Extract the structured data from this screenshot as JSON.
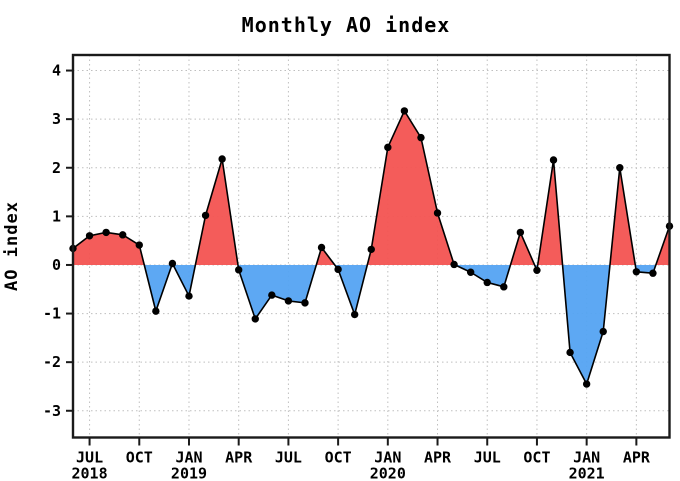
{
  "chart_data": {
    "type": "area",
    "title": "Monthly AO index",
    "ylabel": "AO index",
    "xlabel": "",
    "grid": "dotted",
    "legend_position": "none",
    "ylim": [
      -3.55,
      4.32
    ],
    "yticks": [
      4,
      3,
      2,
      1,
      0,
      -1,
      -2,
      -3
    ],
    "xticks": [
      {
        "month": 1,
        "label": "JUL",
        "year": "2018"
      },
      {
        "month": 4,
        "label": "OCT",
        "year": ""
      },
      {
        "month": 7,
        "label": "JAN",
        "year": "2019"
      },
      {
        "month": 10,
        "label": "APR",
        "year": ""
      },
      {
        "month": 13,
        "label": "JUL",
        "year": ""
      },
      {
        "month": 16,
        "label": "OCT",
        "year": ""
      },
      {
        "month": 19,
        "label": "JAN",
        "year": "2020"
      },
      {
        "month": 22,
        "label": "APR",
        "year": ""
      },
      {
        "month": 25,
        "label": "JUL",
        "year": ""
      },
      {
        "month": 28,
        "label": "OCT",
        "year": ""
      },
      {
        "month": 31,
        "label": "JAN",
        "year": "2021"
      },
      {
        "month": 34,
        "label": "APR",
        "year": ""
      }
    ],
    "x": [
      "Jun 2018",
      "Jul 2018",
      "Aug 2018",
      "Sep 2018",
      "Oct 2018",
      "Nov 2018",
      "Dec 2018",
      "Jan 2019",
      "Feb 2019",
      "Mar 2019",
      "Apr 2019",
      "May 2019",
      "Jun 2019",
      "Jul 2019",
      "Aug 2019",
      "Sep 2019",
      "Oct 2019",
      "Nov 2019",
      "Dec 2019",
      "Jan 2020",
      "Feb 2020",
      "Mar 2020",
      "Apr 2020",
      "May 2020",
      "Jun 2020",
      "Jul 2020",
      "Aug 2020",
      "Sep 2020",
      "Oct 2020",
      "Nov 2020",
      "Dec 2020",
      "Jan 2021",
      "Feb 2021",
      "Mar 2021",
      "Apr 2021",
      "May 2021",
      "Jun 2021"
    ],
    "values": [
      0.34,
      0.6,
      0.67,
      0.62,
      0.41,
      -0.95,
      0.03,
      -0.64,
      1.02,
      2.18,
      -0.1,
      -1.11,
      -0.62,
      -0.74,
      -0.78,
      0.36,
      -0.09,
      -1.02,
      0.32,
      2.42,
      3.17,
      2.62,
      1.07,
      0.01,
      -0.15,
      -0.36,
      -0.45,
      0.67,
      -0.11,
      2.16,
      -1.8,
      -2.45,
      -1.37,
      2.0,
      -0.14,
      -0.17,
      0.8
    ],
    "colors": {
      "positive_fill": "#f35351",
      "negative_fill": "#54a3f2",
      "line": "#000000",
      "marker": "#000000",
      "grid": "#bfbfbf",
      "axis": "#1a1a1a",
      "background": "#ffffff"
    }
  }
}
